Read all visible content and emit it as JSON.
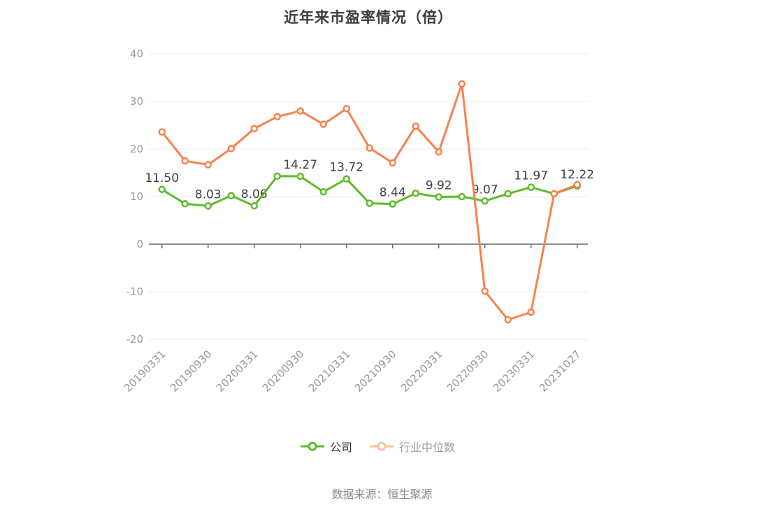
{
  "title": "近年来市盈率情况（倍）",
  "source": "数据来源：恒生聚源",
  "legend": {
    "items": [
      {
        "label": "公司",
        "icon_color": "#5abd2b",
        "text_color": "#333333"
      },
      {
        "label": "行业中位数",
        "icon_color": "#f9c09c",
        "text_color": "#9b9b9b"
      }
    ]
  },
  "chart_data": {
    "type": "line",
    "title": "近年来市盈率情况（倍）",
    "x_tick_labels": [
      "20190331",
      "20190930",
      "20200331",
      "20200930",
      "20210331",
      "20210930",
      "20220331",
      "20220930",
      "20230331",
      "20231027"
    ],
    "points_per_tick": 2,
    "n_points": 19,
    "y_ticks": [
      40,
      30,
      20,
      10,
      0,
      -10,
      -20
    ],
    "ylim": [
      -20,
      40
    ],
    "grid": true,
    "legend_position": "bottom",
    "series": [
      {
        "name": "公司",
        "color": "#5abd2b",
        "values": [
          11.5,
          8.5,
          8.03,
          10.2,
          8.06,
          14.3,
          14.27,
          11.0,
          13.72,
          8.6,
          8.44,
          10.7,
          9.92,
          10.0,
          9.07,
          10.6,
          11.97,
          10.6,
          12.22
        ],
        "point_labels": [
          "11.50",
          null,
          "8.03",
          null,
          "8.06",
          null,
          "14.27",
          null,
          "13.72",
          null,
          "8.44",
          null,
          "9.92",
          null,
          "9.07",
          null,
          "11.97",
          null,
          "12.22"
        ]
      },
      {
        "name": "行业中位数",
        "color": "#f8814f",
        "values": [
          23.6,
          17.5,
          16.7,
          20.1,
          24.3,
          26.8,
          28.0,
          25.2,
          28.5,
          20.2,
          17.1,
          24.8,
          19.4,
          33.7,
          -9.9,
          -15.9,
          -14.3,
          10.6,
          12.5
        ],
        "point_labels": []
      }
    ],
    "colors": {
      "axis": "#64686f",
      "grid": "#e8eef4",
      "axis_label": "#999999",
      "data_label": "#404040"
    }
  }
}
